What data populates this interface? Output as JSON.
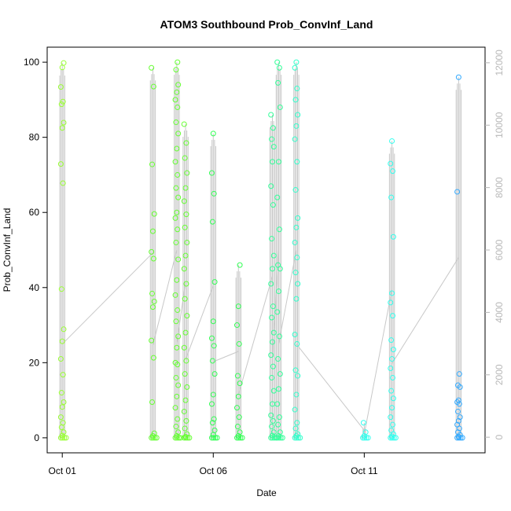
{
  "chart_data": {
    "type": "scatter",
    "title": "ATOM3 Southbound Prob_ConvInf_Land",
    "xlabel": "Date",
    "ylabel": "Prob_ConvInf_Land",
    "xlim": [
      "2016-09-30T12:00",
      "2016-10-15T00:00"
    ],
    "ylim": [
      -4,
      104
    ],
    "y_ticks": [
      0,
      20,
      40,
      60,
      80,
      100
    ],
    "x_ticks": [
      {
        "label": "Oct 01",
        "date": "2016-10-01T00:00"
      },
      {
        "label": "Oct 06",
        "date": "2016-10-06T00:00"
      },
      {
        "label": "Oct 11",
        "date": "2016-10-11T00:00"
      }
    ],
    "secondary_axis": {
      "side": "right",
      "color": "#b8b8b8",
      "ylim": [
        -500,
        12500
      ],
      "ticks": [
        0,
        2000,
        4000,
        6000,
        8000,
        10000,
        12000
      ]
    },
    "grid": false,
    "legend": "none",
    "marker": "open-circle",
    "series": [
      {
        "color": "#99ff33",
        "points": [
          {
            "x": "2016-10-01T00:00",
            "values": [
              0,
              0.6,
              1.5,
              2.8,
              4,
              5.5,
              8.2,
              9.5,
              12,
              16.8,
              21,
              25.7,
              28.9,
              39.6,
              67.8,
              72.9,
              82.5,
              83.9,
              88.8,
              89.5,
              93.4,
              98.6,
              99.8
            ]
          }
        ]
      },
      {
        "color": "#66ff33",
        "points": [
          {
            "x": "2016-10-04T00:00",
            "values": [
              0,
              0.5,
              1.2,
              9.5,
              21.3,
              25.9,
              34.8,
              36.3,
              38.4,
              47.7,
              49.5,
              55,
              59.6,
              72.8,
              93.5,
              98.5
            ]
          },
          {
            "x": "2016-10-04T19:00",
            "values": [
              0,
              0.5,
              1.5,
              3,
              5,
              8,
              11,
              14,
              16,
              19.5,
              20,
              24,
              27,
              31,
              34,
              38,
              42,
              47.5,
              52,
              55.5,
              58.5,
              60,
              64,
              66.5,
              70,
              73.5,
              77,
              81,
              84,
              88,
              90,
              92,
              94,
              98,
              100
            ]
          },
          {
            "x": "2016-10-05T02:00",
            "values": [
              0,
              0.3,
              1,
              2.5,
              4.5,
              7,
              10,
              13.5,
              17,
              20.5,
              24,
              28,
              32.5,
              37,
              41,
              45,
              48.5,
              52,
              56,
              59.5,
              63,
              66.5,
              70.5,
              74.5,
              78.5,
              83.5
            ]
          }
        ]
      },
      {
        "color": "#33ff55",
        "points": [
          {
            "x": "2016-10-06T00:00",
            "values": [
              0,
              0.8,
              2,
              4,
              5,
              9,
              11.5,
              17,
              20.5,
              24.5,
              26.5,
              31,
              41.5,
              57.5,
              65,
              70.5,
              81
            ]
          },
          {
            "x": "2016-10-06T20:00",
            "values": [
              0,
              0.5,
              1.5,
              3,
              5.5,
              8,
              11,
              14.5,
              16.5,
              25,
              30,
              35,
              46
            ]
          }
        ]
      },
      {
        "color": "#33ff99",
        "points": [
          {
            "x": "2016-10-07T23:00",
            "values": [
              0,
              0.6,
              1.5,
              3,
              4.5,
              6,
              9,
              12.5,
              16,
              19,
              22,
              25.5,
              28,
              32,
              35,
              41,
              45,
              48.5,
              53,
              62,
              67,
              73.5,
              77.5,
              79.5,
              82.5,
              86
            ]
          },
          {
            "x": "2016-10-08T04:00",
            "values": [
              0,
              0.5,
              1.5,
              3.5,
              5.5,
              9,
              13,
              17,
              21,
              27,
              33.5,
              39,
              45,
              46,
              55.5,
              64,
              73.5,
              88,
              94.5,
              98.5,
              100
            ]
          }
        ]
      },
      {
        "color": "#33ffcc",
        "points": [
          {
            "x": "2016-10-08T18:00",
            "values": [
              0,
              0.5,
              1,
              2.5,
              4,
              7.5,
              11.5,
              16.5,
              18,
              25,
              27.5,
              37,
              41,
              44,
              48,
              52,
              56,
              58.5,
              66,
              73.5,
              79.5,
              83,
              86,
              90,
              93,
              98.5,
              100
            ]
          }
        ]
      },
      {
        "color": "#33ffee",
        "points": [
          {
            "x": "2016-10-11T00:00",
            "values": [
              0,
              0.5,
              1.5,
              4
            ]
          },
          {
            "x": "2016-10-11T22:00",
            "values": [
              0,
              0.4,
              1,
              2,
              3.5,
              5.5,
              8,
              10.5,
              12.5,
              16,
              18.5,
              21,
              23.5,
              26,
              32.5,
              36,
              38.5,
              53.5,
              64,
              71,
              73,
              79
            ]
          }
        ]
      },
      {
        "color": "#33aaff",
        "points": [
          {
            "x": "2016-10-14T03:00",
            "values": [
              0,
              0.3,
              0.8,
              1.5,
              2.5,
              3.5,
              4.5,
              5.5,
              7,
              9,
              9.5,
              10,
              13.5,
              14,
              17,
              65.5,
              96
            ]
          }
        ]
      }
    ]
  }
}
